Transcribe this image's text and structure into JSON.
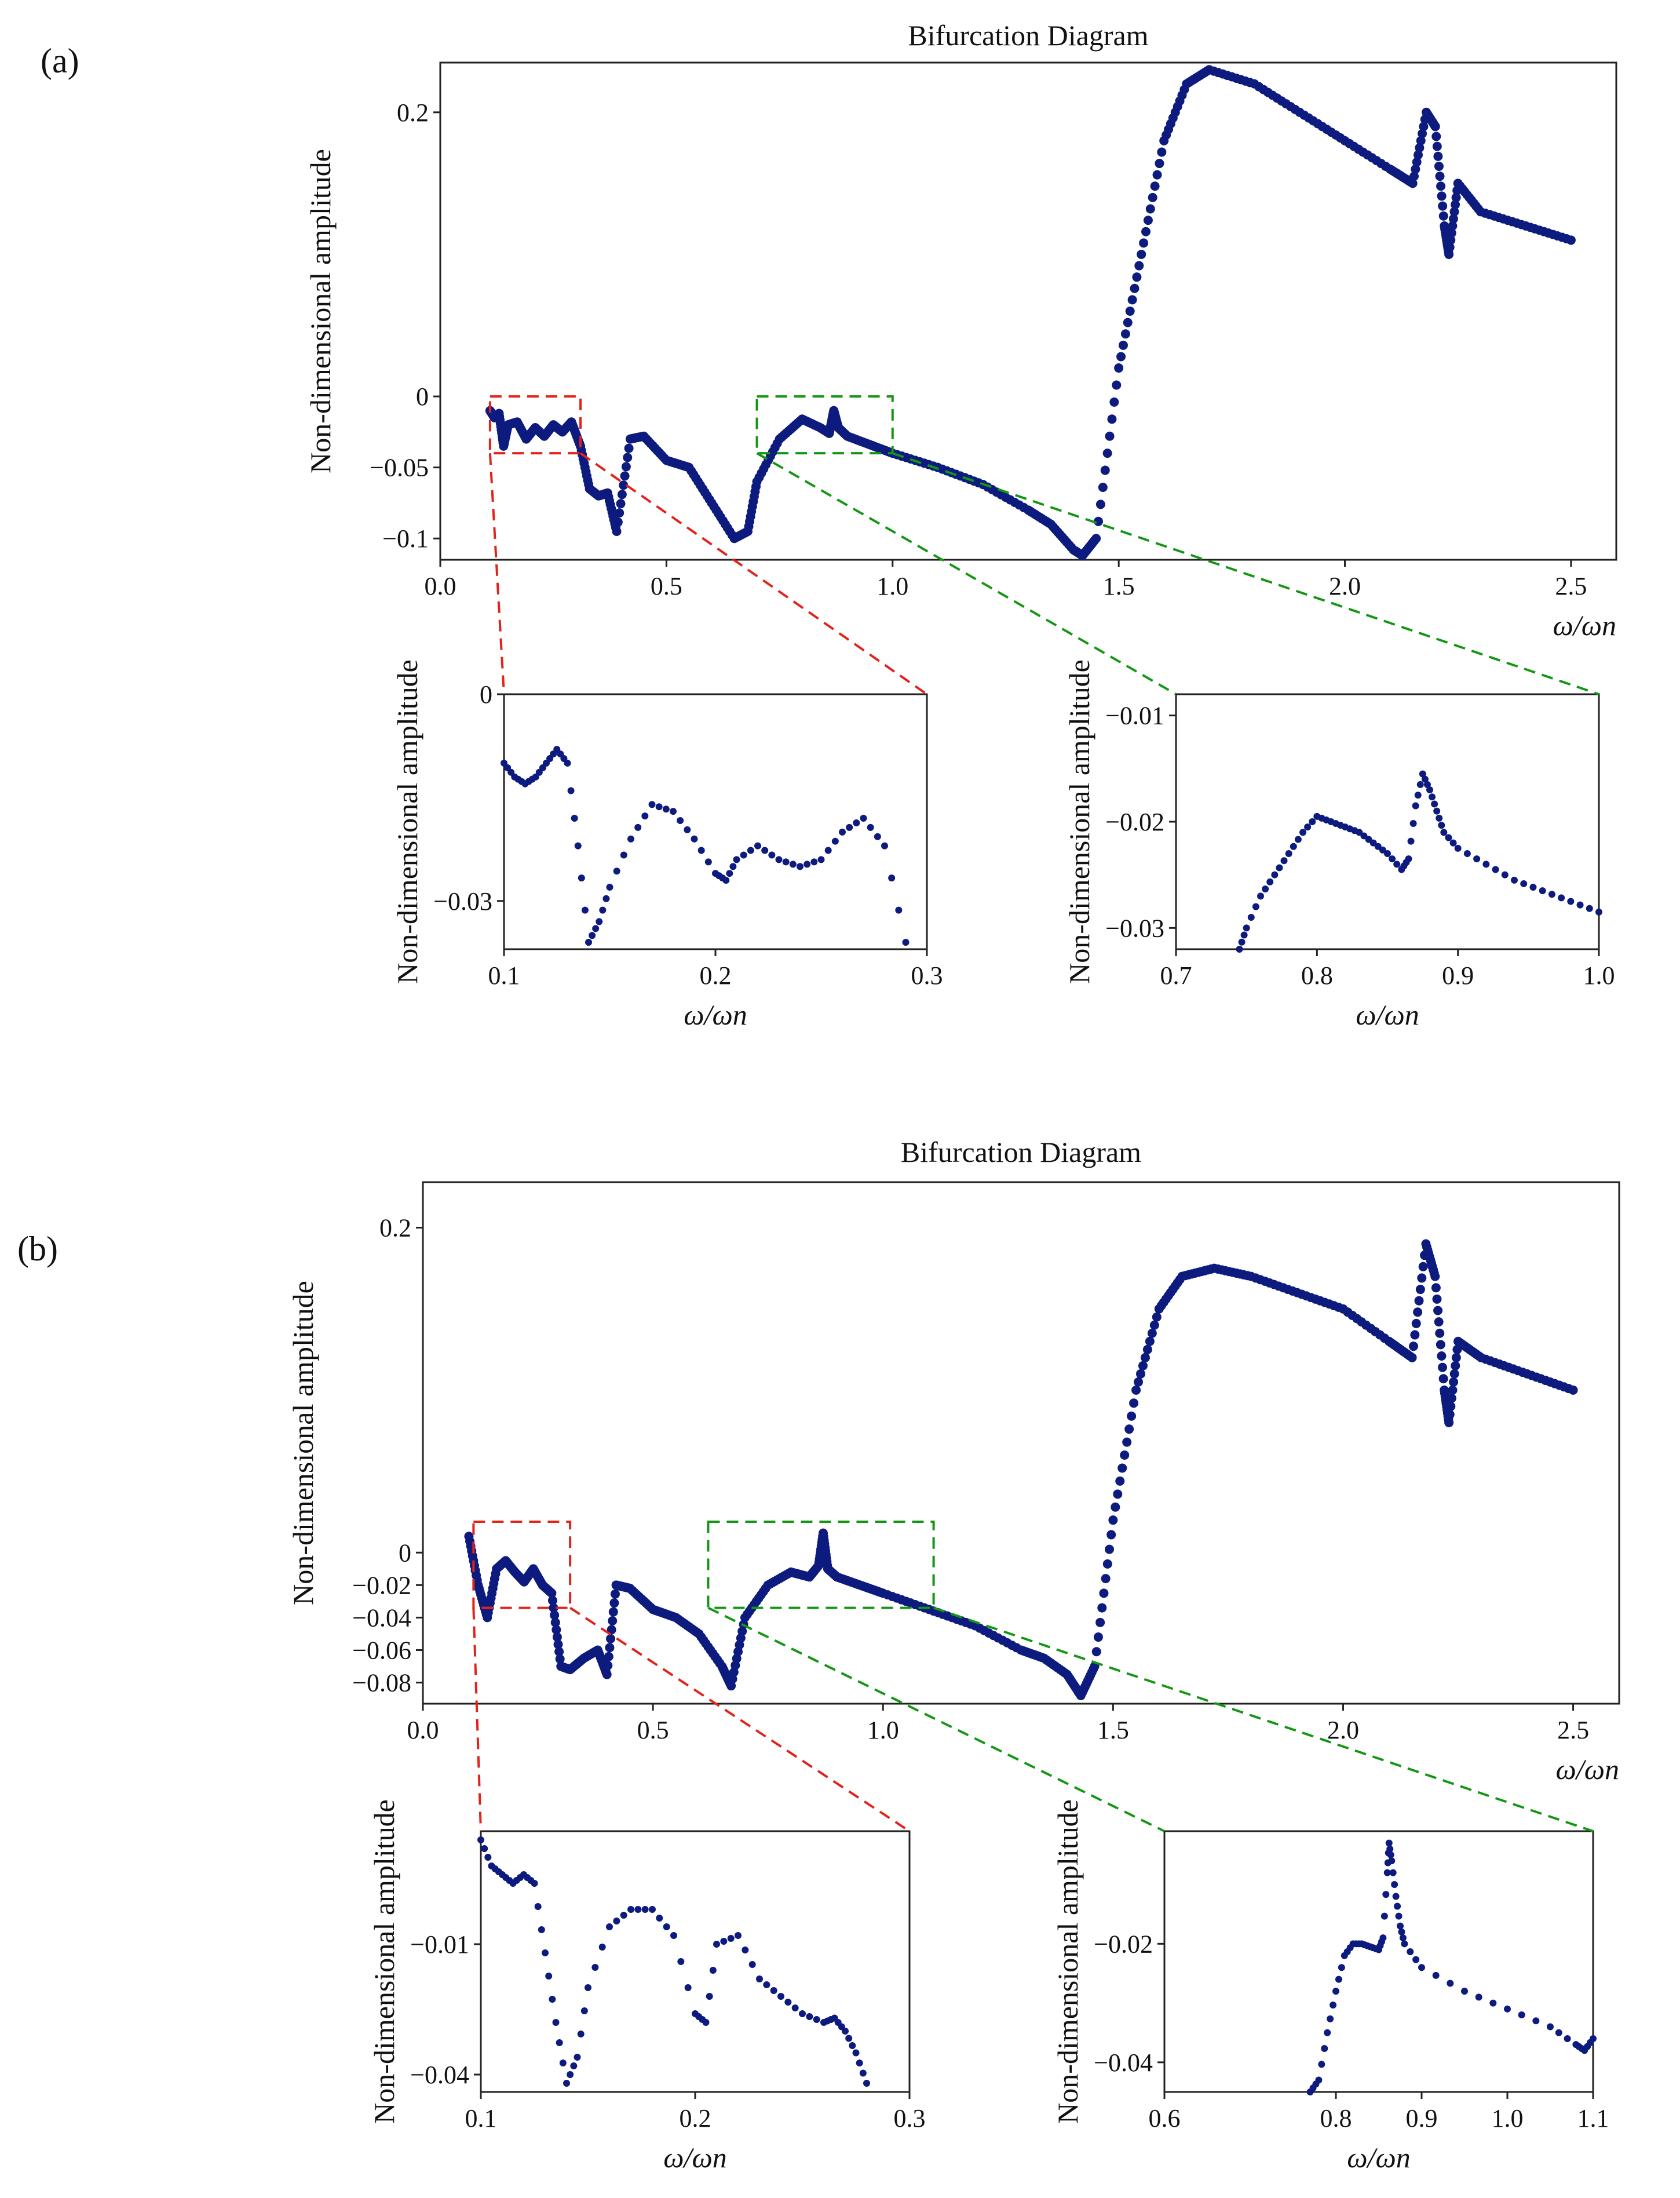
{
  "panels": [
    {
      "label": "(a)"
    },
    {
      "label": "(b)"
    }
  ],
  "colors": {
    "series": "#0d1b7f",
    "zoom_red": "#e2231a",
    "zoom_green": "#139713"
  },
  "chart_data": [
    {
      "id": "a-main",
      "type": "scatter",
      "title": "Bifurcation Diagram",
      "xlabel": "ω/ωn",
      "ylabel": "Non-dimensional amplitude",
      "xlim": [
        0.0,
        2.6
      ],
      "ylim": [
        -0.115,
        0.235
      ],
      "xticks": [
        0.0,
        0.5,
        1.0,
        1.5,
        2.0,
        2.5
      ],
      "xtick_labels": [
        "0.0",
        "0.5",
        "1.0",
        "1.5",
        "2.0",
        "2.5"
      ],
      "yticks": [
        0.2,
        0.0,
        -0.05,
        -0.1
      ],
      "ytick_labels": [
        "0.2",
        "0",
        "−0.05",
        "−0.1"
      ],
      "zoom_boxes": [
        {
          "color": "red",
          "x": [
            0.11,
            0.31
          ],
          "y": [
            -0.04,
            0.0
          ]
        },
        {
          "color": "green",
          "x": [
            0.7,
            1.0
          ],
          "y": [
            -0.04,
            0.0
          ]
        }
      ],
      "x": [
        0.11,
        0.12,
        0.13,
        0.14,
        0.15,
        0.17,
        0.19,
        0.21,
        0.23,
        0.25,
        0.27,
        0.29,
        0.31,
        0.33,
        0.35,
        0.37,
        0.39,
        0.42,
        0.45,
        0.5,
        0.55,
        0.6,
        0.65,
        0.68,
        0.7,
        0.75,
        0.8,
        0.84,
        0.86,
        0.87,
        0.88,
        0.9,
        0.95,
        1.0,
        1.1,
        1.2,
        1.3,
        1.35,
        1.4,
        1.42,
        1.45,
        1.5,
        1.55,
        1.6,
        1.65,
        1.7,
        1.8,
        1.9,
        2.0,
        2.1,
        2.15,
        2.18,
        2.2,
        2.22,
        2.23,
        2.25,
        2.3,
        2.4,
        2.5
      ],
      "y": [
        -0.01,
        -0.015,
        -0.012,
        -0.035,
        -0.02,
        -0.018,
        -0.03,
        -0.022,
        -0.028,
        -0.02,
        -0.025,
        -0.018,
        -0.035,
        -0.065,
        -0.07,
        -0.068,
        -0.095,
        -0.03,
        -0.028,
        -0.045,
        -0.05,
        -0.075,
        -0.1,
        -0.095,
        -0.06,
        -0.03,
        -0.016,
        -0.022,
        -0.026,
        -0.01,
        -0.022,
        -0.028,
        -0.034,
        -0.04,
        -0.05,
        -0.062,
        -0.08,
        -0.09,
        -0.108,
        -0.112,
        -0.1,
        0.02,
        0.1,
        0.18,
        0.22,
        0.23,
        0.22,
        0.2,
        0.18,
        0.16,
        0.15,
        0.2,
        0.19,
        0.12,
        0.1,
        0.15,
        0.13,
        0.12,
        0.11
      ]
    },
    {
      "id": "a-zoom1",
      "type": "scatter",
      "xlabel": "ω/ωn",
      "ylabel": "Non-dimensional amplitude",
      "xlim": [
        0.1,
        0.3
      ],
      "ylim": [
        -0.037,
        0.0
      ],
      "xticks": [
        0.1,
        0.2,
        0.3
      ],
      "xtick_labels": [
        "0.1",
        "0.2",
        "0.3"
      ],
      "yticks": [
        0.0,
        -0.03
      ],
      "ytick_labels": [
        "0",
        "−0.03"
      ],
      "x": [
        0.1,
        0.105,
        0.11,
        0.115,
        0.12,
        0.125,
        0.13,
        0.135,
        0.14,
        0.145,
        0.15,
        0.16,
        0.17,
        0.18,
        0.19,
        0.2,
        0.205,
        0.21,
        0.22,
        0.23,
        0.24,
        0.25,
        0.26,
        0.27,
        0.28,
        0.29
      ],
      "y": [
        -0.01,
        -0.012,
        -0.013,
        -0.012,
        -0.01,
        -0.008,
        -0.01,
        -0.022,
        -0.036,
        -0.033,
        -0.028,
        -0.021,
        -0.016,
        -0.017,
        -0.021,
        -0.026,
        -0.027,
        -0.024,
        -0.022,
        -0.024,
        -0.025,
        -0.024,
        -0.02,
        -0.018,
        -0.022,
        -0.036
      ]
    },
    {
      "id": "a-zoom2",
      "type": "scatter",
      "xlabel": "ω/ωn",
      "ylabel": "Non-dimensional amplitude",
      "xlim": [
        0.7,
        1.0
      ],
      "ylim": [
        -0.032,
        -0.008
      ],
      "xticks": [
        0.7,
        0.8,
        0.9,
        1.0
      ],
      "xtick_labels": [
        "0.7",
        "0.8",
        "0.9",
        "1.0"
      ],
      "yticks": [
        -0.01,
        -0.02,
        -0.03
      ],
      "ytick_labels": [
        "−0.01",
        "−0.02",
        "−0.03"
      ],
      "x": [
        0.745,
        0.75,
        0.76,
        0.77,
        0.78,
        0.79,
        0.8,
        0.81,
        0.82,
        0.83,
        0.84,
        0.85,
        0.86,
        0.865,
        0.87,
        0.875,
        0.88,
        0.885,
        0.89,
        0.9,
        0.92,
        0.94,
        0.96,
        0.98,
        1.0
      ],
      "y": [
        -0.032,
        -0.03,
        -0.027,
        -0.025,
        -0.023,
        -0.021,
        -0.0195,
        -0.02,
        -0.0205,
        -0.021,
        -0.022,
        -0.023,
        -0.0245,
        -0.0235,
        -0.0185,
        -0.0155,
        -0.017,
        -0.019,
        -0.021,
        -0.0225,
        -0.024,
        -0.0255,
        -0.0265,
        -0.0275,
        -0.0285
      ]
    },
    {
      "id": "b-main",
      "type": "scatter",
      "title": "Bifurcation Diagram",
      "xlabel": "ω/ωn",
      "ylabel": "Non-dimensional amplitude",
      "xlim": [
        0.0,
        2.6
      ],
      "ylim": [
        -0.093,
        0.228
      ],
      "xticks": [
        0.0,
        0.5,
        1.0,
        1.5,
        2.0,
        2.5
      ],
      "xtick_labels": [
        "0.0",
        "0.5",
        "1.0",
        "1.5",
        "2.0",
        "2.5"
      ],
      "yticks": [
        0.2,
        0.0,
        -0.02,
        -0.04,
        -0.06,
        -0.08
      ],
      "ytick_labels": [
        "0.2",
        "0",
        "−0.02",
        "−0.04",
        "−0.06",
        "−0.08"
      ],
      "zoom_boxes": [
        {
          "color": "red",
          "x": [
            0.11,
            0.32
          ],
          "y": [
            -0.034,
            0.019
          ]
        },
        {
          "color": "green",
          "x": [
            0.62,
            1.11
          ],
          "y": [
            -0.034,
            0.019
          ]
        }
      ],
      "x": [
        0.1,
        0.12,
        0.14,
        0.16,
        0.18,
        0.2,
        0.22,
        0.24,
        0.26,
        0.28,
        0.3,
        0.32,
        0.35,
        0.38,
        0.4,
        0.42,
        0.45,
        0.5,
        0.55,
        0.6,
        0.65,
        0.67,
        0.7,
        0.75,
        0.8,
        0.84,
        0.86,
        0.87,
        0.88,
        0.9,
        0.95,
        1.0,
        1.1,
        1.2,
        1.3,
        1.35,
        1.4,
        1.43,
        1.46,
        1.5,
        1.55,
        1.6,
        1.65,
        1.72,
        1.8,
        1.9,
        2.0,
        2.1,
        2.15,
        2.18,
        2.2,
        2.22,
        2.23,
        2.25,
        2.3,
        2.4,
        2.5
      ],
      "y": [
        0.01,
        -0.02,
        -0.04,
        -0.01,
        -0.005,
        -0.012,
        -0.018,
        -0.01,
        -0.02,
        -0.025,
        -0.07,
        -0.072,
        -0.065,
        -0.06,
        -0.075,
        -0.02,
        -0.022,
        -0.035,
        -0.04,
        -0.05,
        -0.07,
        -0.082,
        -0.04,
        -0.02,
        -0.012,
        -0.015,
        -0.008,
        0.012,
        -0.01,
        -0.015,
        -0.02,
        -0.025,
        -0.035,
        -0.045,
        -0.06,
        -0.065,
        -0.075,
        -0.088,
        -0.07,
        0.02,
        0.1,
        0.15,
        0.17,
        0.175,
        0.17,
        0.16,
        0.15,
        0.13,
        0.12,
        0.19,
        0.17,
        0.1,
        0.08,
        0.13,
        0.12,
        0.11,
        0.1
      ]
    },
    {
      "id": "b-zoom1",
      "type": "scatter",
      "xlabel": "ω/ωn",
      "ylabel": "Non-dimensional amplitude",
      "xlim": [
        0.1,
        0.3
      ],
      "ylim": [
        -0.044,
        0.016
      ],
      "xticks": [
        0.1,
        0.2,
        0.3
      ],
      "xtick_labels": [
        "0.1",
        "0.2",
        "0.3"
      ],
      "yticks": [
        -0.01,
        -0.04
      ],
      "ytick_labels": [
        "−0.01",
        "−0.04"
      ],
      "x": [
        0.1,
        0.105,
        0.11,
        0.115,
        0.12,
        0.125,
        0.13,
        0.135,
        0.14,
        0.145,
        0.15,
        0.16,
        0.17,
        0.18,
        0.19,
        0.2,
        0.205,
        0.21,
        0.22,
        0.23,
        0.24,
        0.25,
        0.26,
        0.265,
        0.27,
        0.275,
        0.28
      ],
      "y": [
        0.014,
        0.008,
        0.006,
        0.004,
        0.006,
        0.004,
        -0.012,
        -0.028,
        -0.042,
        -0.036,
        -0.02,
        -0.006,
        -0.002,
        -0.002,
        -0.008,
        -0.026,
        -0.028,
        -0.01,
        -0.008,
        -0.018,
        -0.022,
        -0.026,
        -0.028,
        -0.027,
        -0.03,
        -0.035,
        -0.042
      ]
    },
    {
      "id": "b-zoom2",
      "type": "scatter",
      "xlabel": "ω/ωn",
      "ylabel": "Non-dimensional amplitude",
      "xlim": [
        0.6,
        1.1
      ],
      "ylim": [
        -0.045,
        -0.001
      ],
      "xticks": [
        0.6,
        0.8,
        0.9,
        1.0,
        1.1
      ],
      "xtick_labels": [
        "0.6",
        "0.8",
        "0.9",
        "1.0",
        "1.1"
      ],
      "yticks": [
        -0.02,
        -0.04
      ],
      "ytick_labels": [
        "−0.02",
        "−0.04"
      ],
      "x": [
        0.77,
        0.78,
        0.79,
        0.8,
        0.81,
        0.82,
        0.83,
        0.84,
        0.85,
        0.855,
        0.86,
        0.862,
        0.865,
        0.87,
        0.875,
        0.88,
        0.9,
        0.95,
        1.0,
        1.05,
        1.08,
        1.09,
        1.1
      ],
      "y": [
        -0.045,
        -0.043,
        -0.035,
        -0.028,
        -0.022,
        -0.02,
        -0.02,
        -0.0205,
        -0.021,
        -0.019,
        -0.008,
        -0.003,
        -0.006,
        -0.012,
        -0.017,
        -0.02,
        -0.024,
        -0.028,
        -0.031,
        -0.034,
        -0.037,
        -0.038,
        -0.036
      ]
    }
  ]
}
